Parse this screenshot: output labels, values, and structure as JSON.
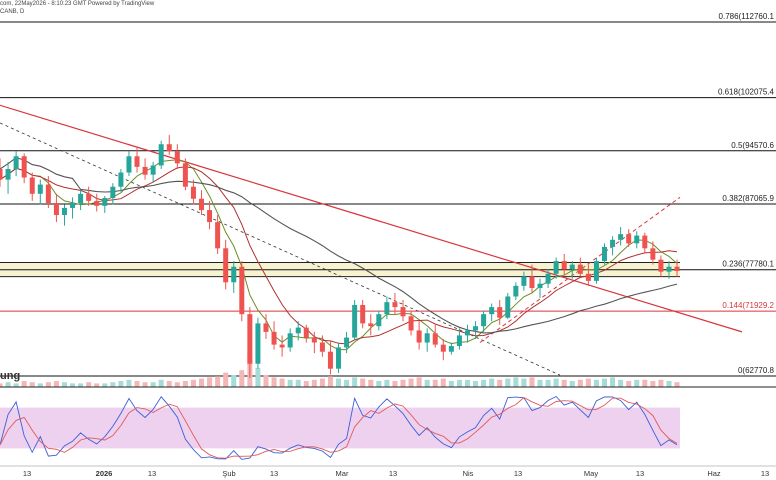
{
  "header": {
    "line1": "com, 22May2026 - 8:10:23 GMT Powered by TradingView",
    "line2": "CANB, D"
  },
  "colors": {
    "up": "#26a69a",
    "down": "#ef5350",
    "fib_line": "#111111",
    "fib_red": "#d9363e",
    "trendline_red": "#d9363e",
    "ma_dark": "#555555",
    "ma_red": "#b03030",
    "ma_olive": "#6b8e23",
    "band_fill": "#f7f3d0",
    "stoch_bg": "#e8c6ea",
    "stoch_k": "#3b5fd9",
    "stoch_d": "#e05a5a"
  },
  "volume_label": "ung",
  "chart_data": {
    "type": "candlestick",
    "title": "",
    "ylim": [
      60000,
      118000
    ],
    "fib_levels": [
      {
        "label": "0.786(112760.1",
        "value": 112760,
        "color": "dark"
      },
      {
        "label": "0.618(102075.4",
        "value": 102075,
        "color": "dark"
      },
      {
        "label": "0.5(94570.6",
        "value": 94570,
        "color": "dark"
      },
      {
        "label": "0.382(87065.9",
        "value": 87066,
        "color": "dark"
      },
      {
        "label": "0.236(77780.1",
        "value": 77780,
        "color": "dark"
      },
      {
        "label": "0.144(71929.2",
        "value": 71929,
        "color": "red"
      },
      {
        "label": "0(62770.8",
        "value": 62771,
        "color": "dark"
      }
    ],
    "support_band": [
      76800,
      78800
    ],
    "x_ticks": [
      {
        "label": "13",
        "bold": false
      },
      {
        "label": "2026",
        "bold": true
      },
      {
        "label": "13",
        "bold": false
      },
      {
        "label": "Şub",
        "bold": false
      },
      {
        "label": "13",
        "bold": false
      },
      {
        "label": "Mar",
        "bold": false
      },
      {
        "label": "13",
        "bold": false
      },
      {
        "label": "Nis",
        "bold": false
      },
      {
        "label": "13",
        "bold": false
      },
      {
        "label": "May",
        "bold": false
      },
      {
        "label": "13",
        "bold": false
      },
      {
        "label": "Haz",
        "bold": false
      },
      {
        "label": "13",
        "bold": false
      }
    ],
    "candles": [
      [
        92000,
        93500,
        89500,
        90500
      ],
      [
        90500,
        93000,
        88500,
        92000
      ],
      [
        92000,
        94500,
        91000,
        93800
      ],
      [
        93800,
        94200,
        90000,
        90800
      ],
      [
        90800,
        91500,
        87500,
        88500
      ],
      [
        88500,
        90500,
        87000,
        89800
      ],
      [
        89800,
        91000,
        86500,
        87200
      ],
      [
        87200,
        88500,
        84500,
        85500
      ],
      [
        85500,
        87000,
        84000,
        86500
      ],
      [
        86500,
        88000,
        85000,
        87200
      ],
      [
        87200,
        89000,
        86200,
        88500
      ],
      [
        88500,
        89500,
        86800,
        87500
      ],
      [
        87500,
        88500,
        86000,
        86800
      ],
      [
        86800,
        88200,
        85800,
        87900
      ],
      [
        87900,
        90000,
        87000,
        89500
      ],
      [
        89500,
        92000,
        88800,
        91500
      ],
      [
        91500,
        94500,
        91000,
        93800
      ],
      [
        93800,
        95000,
        91500,
        92300
      ],
      [
        92300,
        93500,
        90500,
        91200
      ],
      [
        91200,
        93000,
        90200,
        92500
      ],
      [
        92500,
        96000,
        92000,
        95500
      ],
      [
        95500,
        96800,
        94000,
        94500
      ],
      [
        94500,
        95500,
        92000,
        92800
      ],
      [
        92800,
        93500,
        89000,
        89500
      ],
      [
        89500,
        90500,
        87000,
        87800
      ],
      [
        87800,
        89000,
        85500,
        86200
      ],
      [
        86200,
        87500,
        83500,
        84500
      ],
      [
        84500,
        85500,
        80000,
        80800
      ],
      [
        80800,
        82000,
        75000,
        76000
      ],
      [
        76000,
        79000,
        74500,
        78200
      ],
      [
        78200,
        79000,
        70500,
        71500
      ],
      [
        71500,
        72500,
        62500,
        64500
      ],
      [
        64500,
        71000,
        63800,
        70200
      ],
      [
        70200,
        71500,
        68000,
        69000
      ],
      [
        69000,
        70500,
        66500,
        67200
      ],
      [
        67200,
        68500,
        65500,
        66800
      ],
      [
        66800,
        69500,
        66200,
        68800
      ],
      [
        68800,
        70500,
        67800,
        69600
      ],
      [
        69600,
        70000,
        67500,
        68200
      ],
      [
        68200,
        69000,
        66000,
        67500
      ],
      [
        67500,
        68500,
        65500,
        66200
      ],
      [
        66200,
        67800,
        63000,
        63800
      ],
      [
        63800,
        67500,
        63200,
        66800
      ],
      [
        66800,
        69000,
        66000,
        68200
      ],
      [
        68200,
        73500,
        67800,
        72800
      ],
      [
        72800,
        73500,
        69500,
        70200
      ],
      [
        70200,
        71500,
        68500,
        69800
      ],
      [
        69800,
        72000,
        69200,
        71500
      ],
      [
        71500,
        74000,
        70800,
        73200
      ],
      [
        73200,
        74500,
        71500,
        72500
      ],
      [
        72500,
        73500,
        70500,
        71200
      ],
      [
        71200,
        72000,
        68500,
        69200
      ],
      [
        69200,
        70500,
        66500,
        67500
      ],
      [
        67500,
        69500,
        66200,
        68800
      ],
      [
        68800,
        70000,
        66800,
        67200
      ],
      [
        67200,
        68000,
        65000,
        66200
      ],
      [
        66200,
        67500,
        65800,
        67000
      ],
      [
        67000,
        69500,
        66500,
        68500
      ],
      [
        68500,
        70000,
        67500,
        69200
      ],
      [
        69200,
        70500,
        68000,
        69800
      ],
      [
        69800,
        72000,
        69000,
        71500
      ],
      [
        71500,
        73000,
        70500,
        72500
      ],
      [
        72500,
        73500,
        70000,
        71000
      ],
      [
        71000,
        74500,
        70800,
        74000
      ],
      [
        74000,
        76000,
        73500,
        75500
      ],
      [
        75500,
        77500,
        74800,
        76800
      ],
      [
        76800,
        78500,
        74500,
        75200
      ],
      [
        75200,
        76500,
        73800,
        75800
      ],
      [
        75800,
        77800,
        75200,
        77200
      ],
      [
        77200,
        79500,
        76500,
        79000
      ],
      [
        79000,
        80000,
        77000,
        77800
      ],
      [
        77800,
        79000,
        76500,
        78500
      ],
      [
        78500,
        79500,
        76800,
        77200
      ],
      [
        77200,
        78500,
        75500,
        76200
      ],
      [
        76200,
        79500,
        75800,
        79000
      ],
      [
        79000,
        81500,
        78500,
        81000
      ],
      [
        81000,
        82500,
        79800,
        82000
      ],
      [
        82000,
        83800,
        81200,
        82800
      ],
      [
        82800,
        83500,
        81000,
        81500
      ],
      [
        81500,
        83200,
        80800,
        82600
      ],
      [
        82600,
        83000,
        80200,
        80800
      ],
      [
        80800,
        81800,
        78500,
        79200
      ],
      [
        79200,
        79800,
        76800,
        77500
      ],
      [
        77500,
        79000,
        76500,
        78200
      ],
      [
        78200,
        79200,
        76800,
        77600
      ]
    ],
    "volumes": [
      3,
      4,
      3,
      5,
      4,
      3,
      4,
      5,
      4,
      3,
      3,
      4,
      3,
      3,
      4,
      5,
      6,
      5,
      4,
      4,
      6,
      5,
      4,
      5,
      6,
      7,
      8,
      9,
      12,
      10,
      14,
      28,
      16,
      10,
      8,
      7,
      6,
      6,
      5,
      6,
      7,
      9,
      7,
      6,
      8,
      7,
      6,
      5,
      6,
      5,
      6,
      7,
      8,
      6,
      6,
      7,
      5,
      6,
      6,
      5,
      6,
      7,
      6,
      7,
      8,
      7,
      8,
      6,
      6,
      7,
      6,
      5,
      6,
      7,
      6,
      7,
      8,
      6,
      5,
      6,
      6,
      5,
      6,
      5,
      4
    ],
    "stoch_range": [
      0,
      100
    ],
    "stoch_bands": [
      20,
      80
    ]
  }
}
